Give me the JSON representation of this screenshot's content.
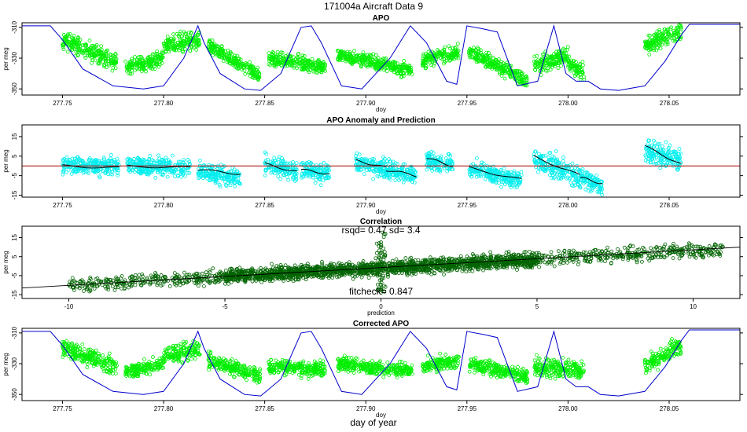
{
  "figure": {
    "title": "171004a   Aircraft Data 9",
    "footer_label": "day of year"
  },
  "colors": {
    "apo_points": "#00ee00",
    "anomaly_points": "#00eeee",
    "correlation_points": "#006400",
    "model_line": "#0000cc",
    "prediction_line": "#000000",
    "zero_line": "#aa0000"
  },
  "chart_data": [
    {
      "id": "apo",
      "type": "scatter",
      "title": "APO",
      "xlabel": "doy",
      "ylabel": "per meg",
      "xlim": [
        277.73,
        278.085
      ],
      "ylim": [
        -354,
        -307
      ],
      "xticks": [
        "277.75",
        "277.80",
        "277.85",
        "277.90",
        "277.95",
        "278.00",
        "278.05"
      ],
      "yticks": [
        "-310",
        "-330",
        "-350"
      ],
      "series": [
        {
          "name": "observed APO",
          "segments": [
            {
              "x": [
                277.75,
                277.777
              ],
              "y": [
                -318,
                -333
              ],
              "spread": 5
            },
            {
              "x": [
                277.781,
                277.8
              ],
              "y": [
                -336,
                -330
              ],
              "spread": 4
            },
            {
              "x": [
                277.8,
                277.818
              ],
              "y": [
                -322,
                -318
              ],
              "spread": 5
            },
            {
              "x": [
                277.822,
                277.848
              ],
              "y": [
                -322,
                -342
              ],
              "spread": 4
            },
            {
              "x": [
                277.852,
                277.88
              ],
              "y": [
                -330,
                -336
              ],
              "spread": 4
            },
            {
              "x": [
                277.886,
                277.923
              ],
              "y": [
                -328,
                -338
              ],
              "spread": 4
            },
            {
              "x": [
                277.928,
                277.946
              ],
              "y": [
                -332,
                -326
              ],
              "spread": 4
            },
            {
              "x": [
                277.951,
                277.98
              ],
              "y": [
                -325,
                -345
              ],
              "spread": 4
            },
            {
              "x": [
                277.983,
                278.0
              ],
              "y": [
                -336,
                -328
              ],
              "spread": 5
            },
            {
              "x": [
                278.0,
                278.008
              ],
              "y": [
                -334,
                -340
              ],
              "spread": 5
            },
            {
              "x": [
                278.038,
                278.056
              ],
              "y": [
                -322,
                -312
              ],
              "spread": 5
            }
          ]
        },
        {
          "name": "model APO",
          "x": [
            277.73,
            277.744,
            277.75,
            277.76,
            277.775,
            277.79,
            277.8,
            277.81,
            277.817,
            277.82,
            277.828,
            277.84,
            277.848,
            277.858,
            277.868,
            277.873,
            277.878,
            277.888,
            277.898,
            277.912,
            277.922,
            277.93,
            277.94,
            277.945,
            277.95,
            277.958,
            277.965,
            277.975,
            277.985,
            277.993,
            277.999,
            278.004,
            278.01,
            278.016,
            278.025,
            278.038,
            278.048,
            278.056,
            278.06,
            278.085
          ],
          "y": [
            -309,
            -309,
            -318,
            -337,
            -348,
            -350,
            -348,
            -330,
            -309,
            -320,
            -340,
            -350,
            -351,
            -340,
            -310,
            -309,
            -320,
            -348,
            -350,
            -330,
            -309,
            -320,
            -345,
            -347,
            -309,
            -311,
            -313,
            -348,
            -345,
            -309,
            -340,
            -345,
            -345,
            -350,
            -351,
            -348,
            -332,
            -315,
            -308,
            -308
          ]
        }
      ]
    },
    {
      "id": "anomaly",
      "type": "scatter",
      "title": "APO Anomaly and Prediction",
      "xlabel": "doy",
      "ylabel": "per meg",
      "xlim": [
        277.73,
        278.085
      ],
      "ylim": [
        -16,
        21
      ],
      "xticks": [
        "277.75",
        "277.80",
        "277.85",
        "277.90",
        "277.95",
        "278.00",
        "278.05"
      ],
      "yticks": [
        "15",
        "5",
        "-5",
        "-15"
      ],
      "series": [
        {
          "name": "APO anomaly",
          "segments": [
            {
              "x": [
                277.75,
                277.778
              ],
              "y": [
                0,
                0
              ],
              "spread": 4
            },
            {
              "x": [
                277.782,
                277.813
              ],
              "y": [
                0,
                -1
              ],
              "spread": 4
            },
            {
              "x": [
                277.817,
                277.838
              ],
              "y": [
                -3,
                -6
              ],
              "spread": 4
            },
            {
              "x": [
                277.85,
                277.866
              ],
              "y": [
                1,
                -3
              ],
              "spread": 4
            },
            {
              "x": [
                277.868,
                277.882
              ],
              "y": [
                -2,
                -4
              ],
              "spread": 4
            },
            {
              "x": [
                277.895,
                277.91
              ],
              "y": [
                2,
                -2
              ],
              "spread": 4
            },
            {
              "x": [
                277.91,
                277.925
              ],
              "y": [
                -2,
                -5
              ],
              "spread": 4
            },
            {
              "x": [
                277.93,
                277.943
              ],
              "y": [
                3,
                0
              ],
              "spread": 4
            },
            {
              "x": [
                277.951,
                277.977
              ],
              "y": [
                -2,
                -7
              ],
              "spread": 4
            },
            {
              "x": [
                277.983,
                278.006
              ],
              "y": [
                4,
                -6
              ],
              "spread": 5
            },
            {
              "x": [
                278.006,
                278.017
              ],
              "y": [
                -6,
                -10
              ],
              "spread": 4
            },
            {
              "x": [
                278.038,
                278.056
              ],
              "y": [
                8,
                3
              ],
              "spread": 5
            }
          ]
        },
        {
          "name": "prediction",
          "segments": [
            {
              "x": [
                277.75,
                277.778
              ],
              "y": [
                0,
                -1
              ]
            },
            {
              "x": [
                277.782,
                277.813
              ],
              "y": [
                0,
                -1
              ]
            },
            {
              "x": [
                277.817,
                277.838
              ],
              "y": [
                -2,
                -4
              ]
            },
            {
              "x": [
                277.85,
                277.866
              ],
              "y": [
                1,
                -3
              ]
            },
            {
              "x": [
                277.868,
                277.882
              ],
              "y": [
                -2,
                -4
              ]
            },
            {
              "x": [
                277.895,
                277.91
              ],
              "y": [
                3,
                -1
              ]
            },
            {
              "x": [
                277.91,
                277.925
              ],
              "y": [
                -2,
                -5
              ]
            },
            {
              "x": [
                277.93,
                277.943
              ],
              "y": [
                4,
                0
              ]
            },
            {
              "x": [
                277.951,
                277.977
              ],
              "y": [
                -1,
                -7
              ]
            },
            {
              "x": [
                277.983,
                278.006
              ],
              "y": [
                5,
                -5
              ]
            },
            {
              "x": [
                278.006,
                278.017
              ],
              "y": [
                -6,
                -9
              ]
            },
            {
              "x": [
                278.038,
                278.056
              ],
              "y": [
                10,
                1
              ]
            }
          ]
        },
        {
          "name": "zero reference",
          "y": 0
        }
      ]
    },
    {
      "id": "correlation",
      "type": "scatter",
      "title": "Correlation",
      "xlabel": "prediction",
      "ylabel": "per meg",
      "xlim": [
        -11.5,
        11.5
      ],
      "ylim": [
        -17,
        21
      ],
      "xticks": [
        "-10",
        "-5",
        "0",
        "5",
        "10"
      ],
      "yticks": [
        "15",
        "5",
        "-5",
        "-15"
      ],
      "annotations": {
        "stats": "rsqd= 0.47 sd= 3.4",
        "fitcheck": "fitcheck= 0.847"
      },
      "fit_line": {
        "x": [
          -11.5,
          11.5
        ],
        "y": [
          -11.5,
          10
        ]
      },
      "series": [
        {
          "name": "anomaly vs prediction",
          "x_range": [
            -10,
            11
          ],
          "slope": 0.9,
          "intercept": -1,
          "spread": 4
        }
      ]
    },
    {
      "id": "corrected",
      "type": "scatter",
      "title": "Corrected APO",
      "xlabel": "doy",
      "ylabel": "per meg",
      "xlim": [
        277.73,
        278.085
      ],
      "ylim": [
        -354,
        -307
      ],
      "xticks": [
        "277.75",
        "277.80",
        "277.85",
        "277.90",
        "277.95",
        "278.00",
        "278.05"
      ],
      "yticks": [
        "-310",
        "-330",
        "-350"
      ],
      "series": [
        {
          "name": "corrected APO",
          "segments": [
            {
              "x": [
                277.75,
                277.777
              ],
              "y": [
                -320,
                -332
              ],
              "spread": 5
            },
            {
              "x": [
                277.781,
                277.8
              ],
              "y": [
                -336,
                -330
              ],
              "spread": 4
            },
            {
              "x": [
                277.8,
                277.818
              ],
              "y": [
                -325,
                -320
              ],
              "spread": 5
            },
            {
              "x": [
                277.822,
                277.848
              ],
              "y": [
                -328,
                -338
              ],
              "spread": 4
            },
            {
              "x": [
                277.852,
                277.88
              ],
              "y": [
                -332,
                -334
              ],
              "spread": 4
            },
            {
              "x": [
                277.886,
                277.923
              ],
              "y": [
                -330,
                -335
              ],
              "spread": 4
            },
            {
              "x": [
                277.928,
                277.946
              ],
              "y": [
                -332,
                -328
              ],
              "spread": 4
            },
            {
              "x": [
                277.951,
                277.98
              ],
              "y": [
                -330,
                -338
              ],
              "spread": 4
            },
            {
              "x": [
                277.983,
                278.008
              ],
              "y": [
                -332,
                -334
              ],
              "spread": 5
            },
            {
              "x": [
                278.038,
                278.056
              ],
              "y": [
                -332,
                -318
              ],
              "spread": 5
            }
          ]
        },
        {
          "name": "model APO",
          "x": [
            277.73,
            277.744,
            277.75,
            277.76,
            277.775,
            277.79,
            277.8,
            277.81,
            277.817,
            277.82,
            277.828,
            277.84,
            277.848,
            277.858,
            277.868,
            277.873,
            277.878,
            277.888,
            277.898,
            277.912,
            277.922,
            277.93,
            277.94,
            277.945,
            277.95,
            277.958,
            277.965,
            277.975,
            277.985,
            277.993,
            277.999,
            278.004,
            278.01,
            278.016,
            278.025,
            278.038,
            278.048,
            278.056,
            278.06,
            278.085
          ],
          "y": [
            -309,
            -309,
            -318,
            -337,
            -348,
            -350,
            -348,
            -330,
            -309,
            -320,
            -340,
            -350,
            -351,
            -340,
            -310,
            -309,
            -320,
            -348,
            -350,
            -330,
            -309,
            -320,
            -345,
            -347,
            -309,
            -311,
            -313,
            -348,
            -345,
            -309,
            -340,
            -345,
            -345,
            -350,
            -351,
            -348,
            -332,
            -315,
            -308,
            -308
          ]
        }
      ]
    }
  ]
}
